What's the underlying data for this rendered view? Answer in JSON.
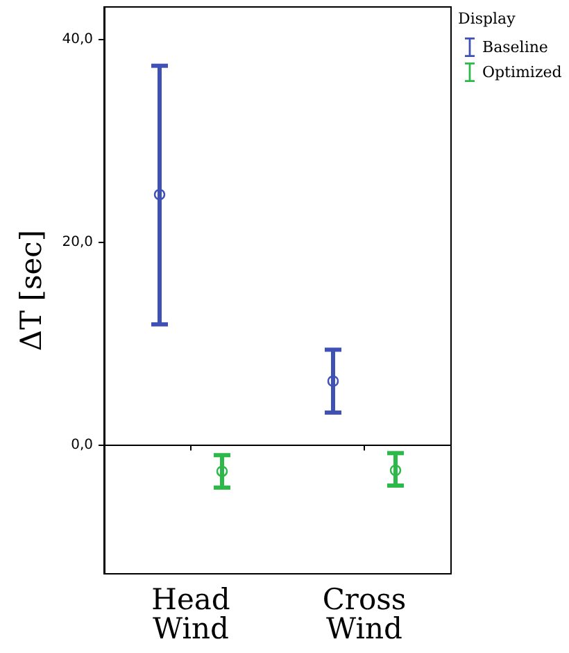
{
  "chart_data": {
    "type": "scatter",
    "ylabel": "ΔT [sec]",
    "legend_title": "Display",
    "categories": [
      "Head Wind",
      "Cross Wind"
    ],
    "series": [
      {
        "name": "Baseline",
        "color": "#3f51b5",
        "values": [
          24.7,
          6.3
        ],
        "errors": [
          [
            11.9,
            37.4
          ],
          [
            3.2,
            9.4
          ]
        ]
      },
      {
        "name": "Optimized",
        "color": "#2db84a",
        "values": [
          -2.6,
          -2.5
        ],
        "errors": [
          [
            -4.2,
            -1.0
          ],
          [
            -4.0,
            -0.8
          ]
        ]
      }
    ],
    "ylim": [
      -12.7,
      43.2
    ],
    "yticks": [
      {
        "value": 0,
        "label": "0,0"
      },
      {
        "value": 20,
        "label": "20,0"
      },
      {
        "value": 40,
        "label": "40,0"
      }
    ],
    "ref_lines": [
      {
        "axis": "y",
        "value": 0,
        "label": null,
        "color": "#000000"
      }
    ],
    "marker": "circle",
    "grid": false,
    "legend": "top right"
  }
}
